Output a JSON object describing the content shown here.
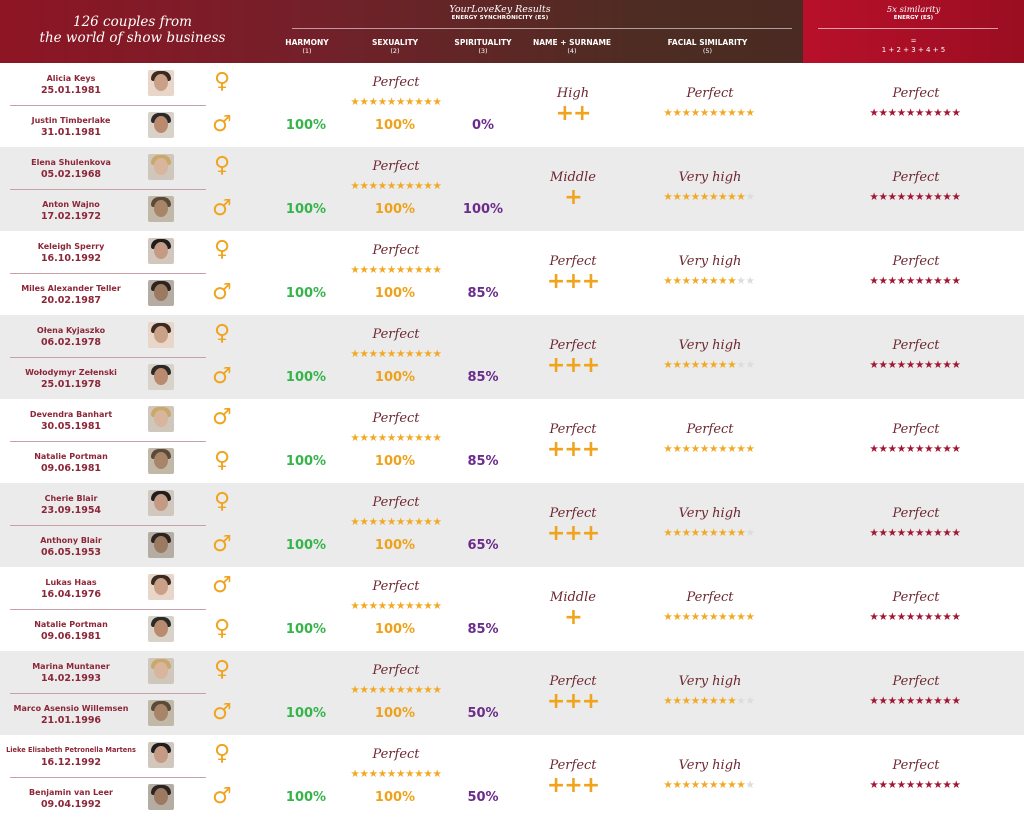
{
  "header": {
    "title_line1": "126 couples from",
    "title_line2": "the world of show business",
    "results_title": "YourLoveKey Results",
    "es_title": "ENERGY SYNCHRONICITY (ES)",
    "columns": [
      {
        "label": "HARMONY",
        "num": "(1)"
      },
      {
        "label": "SEXUALITY",
        "num": "(2)"
      },
      {
        "label": "SPIRITUALITY",
        "num": "(3)"
      },
      {
        "label": "NAME + SURNAME",
        "num": "(4)"
      },
      {
        "label": "FACIAL SIMILARITY",
        "num": "(5)"
      }
    ],
    "similarity_title": "5x similarity",
    "similarity_energy": "ENERGY (ES)",
    "similarity_eq": "=",
    "similarity_formula": "1 + 2 + 3 + 4 + 5"
  },
  "colors": {
    "harmony": "#36b44a",
    "sexuality": "#eea21c",
    "spirituality": "#6b2c8c",
    "name_color": "#8c2638",
    "star_yellow": "#f2a822",
    "star_red": "#a31432"
  },
  "rows": [
    {
      "p1": {
        "name": "Alicia Keys",
        "date": "25.01.1981",
        "gender": "♀"
      },
      "p2": {
        "name": "Justin Timberlake",
        "date": "31.01.1981",
        "gender": "♂"
      },
      "es_label": "Perfect",
      "es_stars": 10,
      "harmony": "100%",
      "sexuality": "100%",
      "spirituality": "0%",
      "name_label": "High",
      "name_plus": "++",
      "facial_label": "Perfect",
      "facial_stars": 10,
      "sim_label": "Perfect",
      "sim_stars": 10
    },
    {
      "p1": {
        "name": "Elena Shulenkova",
        "date": "05.02.1968",
        "gender": "♀"
      },
      "p2": {
        "name": "Anton Wajno",
        "date": "17.02.1972",
        "gender": "♂"
      },
      "es_label": "Perfect",
      "es_stars": 10,
      "harmony": "100%",
      "sexuality": "100%",
      "spirituality": "100%",
      "name_label": "Middle",
      "name_plus": "+",
      "facial_label": "Very high",
      "facial_stars": 9,
      "sim_label": "Perfect",
      "sim_stars": 10
    },
    {
      "p1": {
        "name": "Keleigh Sperry",
        "date": "16.10.1992",
        "gender": "♀"
      },
      "p2": {
        "name": "Miles Alexander Teller",
        "date": "20.02.1987",
        "gender": "♂"
      },
      "es_label": "Perfect",
      "es_stars": 10,
      "harmony": "100%",
      "sexuality": "100%",
      "spirituality": "85%",
      "name_label": "Perfect",
      "name_plus": "+++",
      "facial_label": "Very high",
      "facial_stars": 8,
      "sim_label": "Perfect",
      "sim_stars": 10
    },
    {
      "p1": {
        "name": "Ołena Kyjaszko",
        "date": "06.02.1978",
        "gender": "♀"
      },
      "p2": {
        "name": "Wołodymyr Zełenski",
        "date": "25.01.1978",
        "gender": "♂"
      },
      "es_label": "Perfect",
      "es_stars": 10,
      "harmony": "100%",
      "sexuality": "100%",
      "spirituality": "85%",
      "name_label": "Perfect",
      "name_plus": "+++",
      "facial_label": "Very high",
      "facial_stars": 8,
      "sim_label": "Perfect",
      "sim_stars": 10
    },
    {
      "p1": {
        "name": "Devendra Banhart",
        "date": "30.05.1981",
        "gender": "♂"
      },
      "p2": {
        "name": "Natalie Portman",
        "date": "09.06.1981",
        "gender": "♀"
      },
      "es_label": "Perfect",
      "es_stars": 10,
      "harmony": "100%",
      "sexuality": "100%",
      "spirituality": "85%",
      "name_label": "Perfect",
      "name_plus": "+++",
      "facial_label": "Perfect",
      "facial_stars": 10,
      "sim_label": "Perfect",
      "sim_stars": 10
    },
    {
      "p1": {
        "name": "Cherie Blair",
        "date": "23.09.1954",
        "gender": "♀"
      },
      "p2": {
        "name": "Anthony Blair",
        "date": "06.05.1953",
        "gender": "♂"
      },
      "es_label": "Perfect",
      "es_stars": 10,
      "harmony": "100%",
      "sexuality": "100%",
      "spirituality": "65%",
      "name_label": "Perfect",
      "name_plus": "+++",
      "facial_label": "Very high",
      "facial_stars": 9,
      "sim_label": "Perfect",
      "sim_stars": 10
    },
    {
      "p1": {
        "name": "Lukas Haas",
        "date": "16.04.1976",
        "gender": "♂"
      },
      "p2": {
        "name": "Natalie Portman",
        "date": "09.06.1981",
        "gender": "♀"
      },
      "es_label": "Perfect",
      "es_stars": 10,
      "harmony": "100%",
      "sexuality": "100%",
      "spirituality": "85%",
      "name_label": "Middle",
      "name_plus": "+",
      "facial_label": "Perfect",
      "facial_stars": 10,
      "sim_label": "Perfect",
      "sim_stars": 10
    },
    {
      "p1": {
        "name": "Marina Muntaner",
        "date": "14.02.1993",
        "gender": "♀"
      },
      "p2": {
        "name": "Marco Asensio Willemsen",
        "date": "21.01.1996",
        "gender": "♂"
      },
      "es_label": "Perfect",
      "es_stars": 10,
      "harmony": "100%",
      "sexuality": "100%",
      "spirituality": "50%",
      "name_label": "Perfect",
      "name_plus": "+++",
      "facial_label": "Very high",
      "facial_stars": 8,
      "sim_label": "Perfect",
      "sim_stars": 10
    },
    {
      "p1": {
        "name": "Lieke Elisabeth Petronella Martens",
        "date": "16.12.1992",
        "gender": "♀"
      },
      "p2": {
        "name": "Benjamin van Leer",
        "date": "09.04.1992",
        "gender": "♂"
      },
      "es_label": "Perfect",
      "es_stars": 10,
      "harmony": "100%",
      "sexuality": "100%",
      "spirituality": "50%",
      "name_label": "Perfect",
      "name_plus": "+++",
      "facial_label": "Very high",
      "facial_stars": 9,
      "sim_label": "Perfect",
      "sim_stars": 10
    }
  ]
}
